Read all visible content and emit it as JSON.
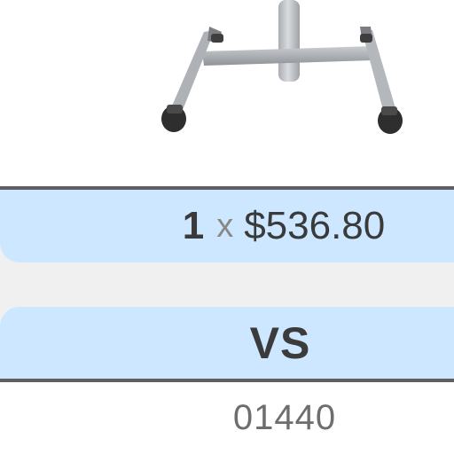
{
  "product": {
    "image_icon": "mobile-stand-base-image",
    "code": "01440"
  },
  "price_row": {
    "quantity": "1",
    "times": "x",
    "amount": "$536.80"
  },
  "compare": {
    "vs_label": "VS"
  },
  "colors": {
    "pill_background": "#cce7ff",
    "band_background": "#f0f0f0",
    "divider": "#5f5f5f",
    "text_dark": "#3a3a3a",
    "text_muted": "#888888"
  }
}
